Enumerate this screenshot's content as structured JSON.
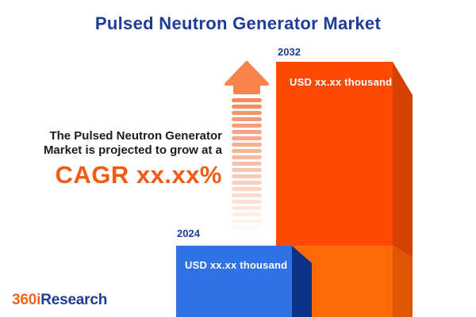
{
  "title": "Pulsed Neutron Generator Market",
  "description": {
    "line1": "The Pulsed Neutron Generator",
    "line2": "Market is projected to grow at a",
    "cagr": "CAGR xx.xx%"
  },
  "arrow": {
    "stripe_count": 21,
    "stripe_color": "#f8875a",
    "head_color": "#f8834e"
  },
  "bars": {
    "b2032": {
      "year": "2032",
      "value_label": "USD xx.xx thousand",
      "front_top": "#fc4a05",
      "front_bottom": "#fc6a06",
      "side_top": "#d54103",
      "side_bottom": "#de5504"
    },
    "b2024": {
      "year": "2024",
      "value_label": "USD xx.xx thousand",
      "front": "#2f72e6",
      "side": "#0b3185"
    }
  },
  "colors": {
    "title_blue": "#1e3c99",
    "text_dark": "#1d1d1d",
    "cagr_orange": "#f25c12",
    "background": "#ffffff"
  },
  "logo": {
    "prefix": "360i",
    "suffix": "Research",
    "prefix_color": "#f26322",
    "suffix_color": "#1e3c99"
  },
  "chart_data": {
    "type": "bar",
    "title": "Pulsed Neutron Generator Market",
    "categories": [
      "2024",
      "2032"
    ],
    "values": [
      null,
      null
    ],
    "values_masked": true,
    "value_labels": [
      "USD xx.xx thousand",
      "USD xx.xx thousand"
    ],
    "relative_heights": [
      0.28,
      1.0
    ],
    "bar_colors": [
      "#2f72e6",
      "#fc4a05"
    ],
    "annotations": [
      "The Pulsed Neutron Generator Market is projected to grow at a CAGR xx.xx%"
    ],
    "legend": false,
    "axes": false
  }
}
